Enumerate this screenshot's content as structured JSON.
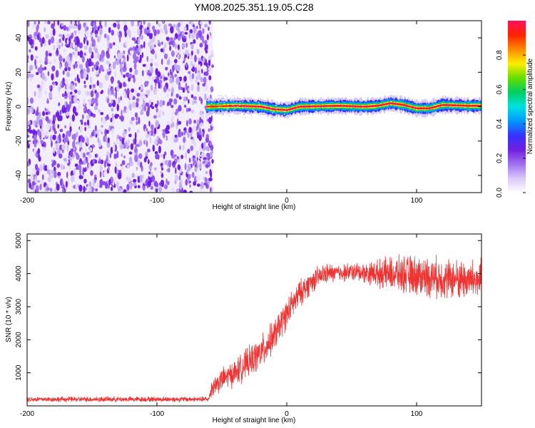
{
  "title": "YM08.2025.351.19.05.C28",
  "chart_data": [
    {
      "type": "heatmap",
      "name": "spectrogram",
      "xlabel": "Height of straight line (km)",
      "ylabel": "Frequency (Hz)",
      "xlim": [
        -200,
        150
      ],
      "ylim": [
        -50,
        50
      ],
      "xticks": [
        -200,
        -100,
        0,
        100
      ],
      "xtick_labels": [
        "-200",
        "-100",
        "0",
        "100"
      ],
      "yticks": [
        -40,
        -20,
        0,
        20,
        40
      ],
      "ytick_labels": [
        "-40",
        "-20",
        "0",
        "20",
        "40"
      ],
      "noise_region_x": [
        -200,
        -57
      ],
      "signal_start_x": -62,
      "signal_line_freq": [
        [
          -62,
          0
        ],
        [
          -40,
          0.5
        ],
        [
          -20,
          0
        ],
        [
          -10,
          -1.5
        ],
        [
          0,
          -2
        ],
        [
          10,
          0
        ],
        [
          40,
          0.5
        ],
        [
          60,
          0
        ],
        [
          70,
          0.5
        ],
        [
          80,
          2
        ],
        [
          90,
          1
        ],
        [
          100,
          -1
        ],
        [
          110,
          -1
        ],
        [
          120,
          1
        ],
        [
          140,
          0.5
        ],
        [
          150,
          0.5
        ]
      ],
      "colorbar": {
        "label": "Normalized spectral amplitude",
        "range": [
          0,
          1
        ],
        "ticks": [
          0.0,
          0.2,
          0.4,
          0.6,
          0.8
        ],
        "tick_labels": [
          "0.0",
          "0.2",
          "0.4",
          "0.6",
          "0.8"
        ],
        "colors": [
          "#ffffff",
          "#d8c8f8",
          "#a070f0",
          "#7020e0",
          "#3333ff",
          "#0099ff",
          "#00e0e0",
          "#00d060",
          "#66dd00",
          "#ffee00",
          "#ff8800",
          "#ff2200",
          "#ff1060"
        ]
      }
    },
    {
      "type": "line",
      "name": "snr",
      "xlabel": "Height of straight line (km)",
      "ylabel": "SNR (10 * v/v)",
      "xlim": [
        -200,
        150
      ],
      "ylim": [
        0,
        5200
      ],
      "xticks": [
        -200,
        -100,
        0,
        100
      ],
      "xtick_labels": [
        "-200",
        "-100",
        "0",
        "100"
      ],
      "yticks": [
        1000,
        2000,
        3000,
        4000,
        5000
      ],
      "ytick_labels": [
        "1000",
        "2000",
        "3000",
        "4000",
        "5000"
      ],
      "color": "#ee3333",
      "trend": [
        [
          -200,
          200
        ],
        [
          -100,
          200
        ],
        [
          -60,
          200
        ],
        [
          -58,
          550
        ],
        [
          -50,
          800
        ],
        [
          -40,
          1000
        ],
        [
          -30,
          1300
        ],
        [
          -20,
          1600
        ],
        [
          -10,
          2100
        ],
        [
          0,
          2800
        ],
        [
          10,
          3400
        ],
        [
          20,
          3800
        ],
        [
          30,
          4000
        ],
        [
          50,
          4050
        ],
        [
          75,
          4000
        ],
        [
          100,
          3950
        ],
        [
          125,
          3850
        ],
        [
          150,
          3800
        ]
      ],
      "noise_amplitude": [
        [
          -200,
          80
        ],
        [
          -60,
          80
        ],
        [
          -58,
          300
        ],
        [
          -20,
          500
        ],
        [
          0,
          450
        ],
        [
          20,
          350
        ],
        [
          40,
          250
        ],
        [
          60,
          300
        ],
        [
          80,
          500
        ],
        [
          100,
          600
        ],
        [
          150,
          600
        ]
      ]
    }
  ]
}
